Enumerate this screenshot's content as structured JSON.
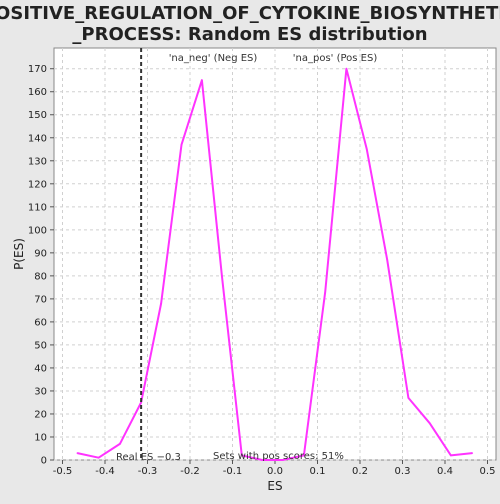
{
  "chart_data": {
    "type": "line",
    "title_line1": "POSITIVE_REGULATION_OF_CYTOKINE_BIOSYNTHETIC",
    "title_line2": "_PROCESS: Random ES distribution",
    "xlabel": "ES",
    "ylabel": "P(ES)",
    "xlim": [
      -0.52,
      0.52
    ],
    "ylim": [
      0,
      179
    ],
    "x_ticks": [
      -0.5,
      -0.4,
      -0.3,
      -0.2,
      -0.1,
      0.0,
      0.1,
      0.2,
      0.3,
      0.4,
      0.5
    ],
    "x_tick_labels": [
      "-0.5",
      "-0.4",
      "-0.3",
      "-0.2",
      "-0.1",
      "0.0",
      "0.1",
      "0.2",
      "0.3",
      "0.4",
      "0.5"
    ],
    "y_ticks": [
      0,
      10,
      20,
      30,
      40,
      50,
      60,
      70,
      80,
      90,
      100,
      110,
      120,
      130,
      140,
      150,
      160,
      170
    ],
    "grid": true,
    "series": [
      {
        "color": "#ff33ff",
        "x": [
          -0.465,
          -0.415,
          -0.365,
          -0.315,
          -0.268,
          -0.22,
          -0.172,
          -0.125,
          -0.078,
          -0.03,
          0.018,
          0.068,
          0.118,
          0.168,
          0.216,
          0.264,
          0.314,
          0.364,
          0.414,
          0.464
        ],
        "y": [
          3,
          1,
          7,
          25,
          68,
          137,
          165,
          80,
          2,
          0,
          0,
          2,
          73,
          170,
          135,
          87,
          27,
          16,
          2,
          3
        ]
      }
    ],
    "real_es": {
      "x": -0.315,
      "label": "Real ES −0.3",
      "color": "#333333"
    },
    "legend_neg": {
      "label": "'na_neg' (Neg ES)",
      "color": "#4a4acc"
    },
    "legend_pos": {
      "label": "'na_pos' (Pos ES)",
      "color": "#e05555"
    },
    "footer_note": "Sets with pos scores: 51%"
  }
}
